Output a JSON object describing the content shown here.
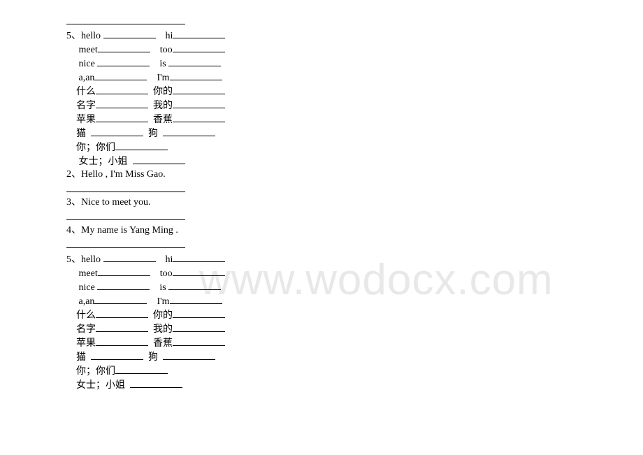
{
  "watermark": "www.wodocx.com",
  "block1": {
    "line0_blank": " ",
    "prefix5": "5、",
    "prefix2": "2、",
    "prefix3": "3、",
    "prefix4": "4、",
    "words": {
      "hello": "hello",
      "hi": "hi",
      "meet": "meet",
      "too": "too",
      "nice": "nice",
      "is": "is",
      "aan": "a,an",
      "im": "I'm",
      "shenme": "什么",
      "nide": "你的",
      "mingzi": "名字",
      "wode": "我的",
      "pingguo": "苹果",
      "xiangjiao": "香蕉",
      "mao": "猫",
      "gou": "狗",
      "ninimen": "你；你们",
      "nvshi": "女士；小姐"
    },
    "sentences": {
      "s2": "Hello , I'm Miss Gao.",
      "s3": "Nice to meet you.",
      "s4": "My name is Yang Ming ."
    }
  }
}
